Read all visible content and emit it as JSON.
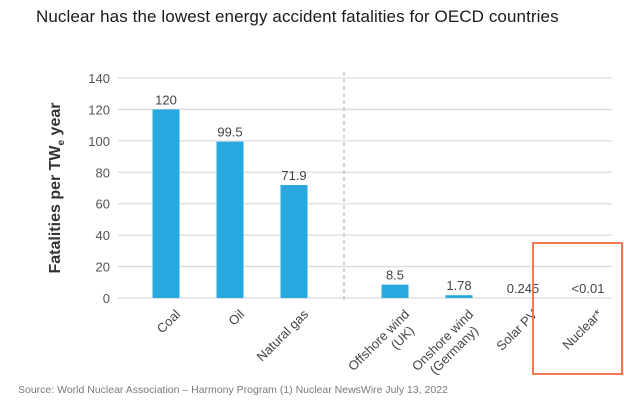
{
  "title": "Nuclear has the lowest energy accident fatalities for OECD countries",
  "source": "Source: World Nuclear Association – Harmony Program (1) Nuclear NewsWire July 13, 2022",
  "colors": {
    "bar": "#29a8e0",
    "grid": "#dcdcdc",
    "divider": "#b5b5b5",
    "highlight": "#f07a4f"
  },
  "chart_data": {
    "type": "bar",
    "title": "Nuclear has the lowest energy accident fatalities for OECD countries",
    "xlabel": "",
    "ylabel": "Fatalities per TWe year",
    "ylabel_main": "Fatalities per TW",
    "ylabel_sub": "e",
    "ylabel_tail": " year",
    "ylim": [
      0,
      140
    ],
    "yticks": [
      0,
      20,
      40,
      60,
      80,
      100,
      120,
      140
    ],
    "grid": true,
    "categories": [
      [
        "Coal"
      ],
      [
        "Oil"
      ],
      [
        "Natural gas"
      ],
      [
        "Offshore wind",
        "(UK)"
      ],
      [
        "Onshore wind",
        "(Germany)"
      ],
      [
        "Solar PV"
      ],
      [
        "Nuclear*"
      ]
    ],
    "values": [
      120,
      99.5,
      71.9,
      8.5,
      1.78,
      0.245,
      0.01
    ],
    "value_labels": [
      "120",
      "99.5",
      "71.9",
      "8.5",
      "1.78",
      "0.245",
      "<0.01"
    ],
    "divider_after_index": 2,
    "highlighted_category": "Nuclear*"
  }
}
